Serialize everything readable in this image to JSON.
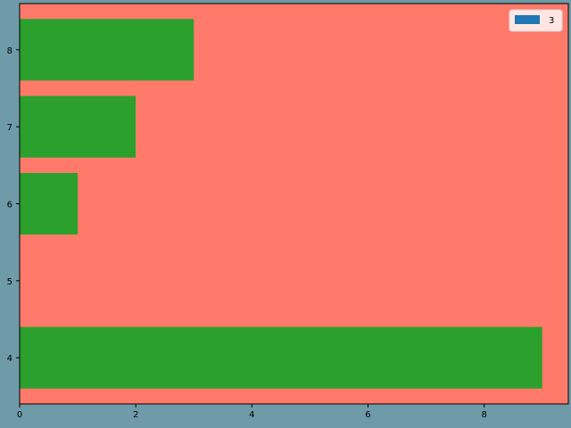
{
  "chart_data": {
    "type": "bar",
    "orientation": "horizontal",
    "categories": [
      "4",
      "5",
      "6",
      "7",
      "8"
    ],
    "series": [
      {
        "name": "3",
        "values": [
          9,
          0,
          1,
          2,
          3
        ]
      }
    ],
    "title": "",
    "xlabel": "",
    "ylabel": "",
    "xlim": [
      0,
      9.45
    ],
    "ylim": [
      3.4,
      8.6
    ],
    "xticks": [
      0,
      2,
      4,
      6,
      8
    ],
    "yticks": [
      4,
      5,
      6,
      7,
      8
    ],
    "grid": false,
    "legend_position": "upper right",
    "colors": {
      "figure_background": "#6f9aa8",
      "axes_background": "#ff7a6a",
      "bar_fill": "#2ca02c",
      "legend_patch": "#1f77b4",
      "legend_background": "#ffe6e2"
    }
  }
}
